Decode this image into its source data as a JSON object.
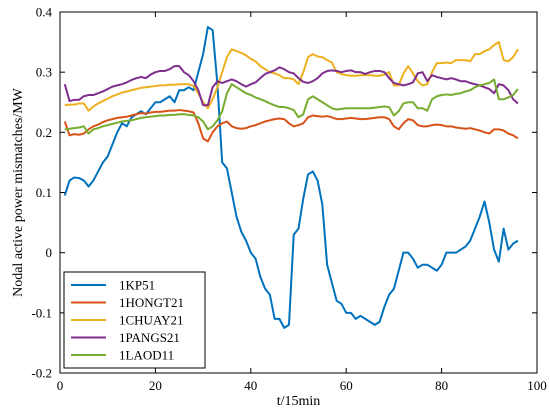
{
  "chart_data": {
    "type": "line",
    "xlabel": "t/15min",
    "ylabel": "Nodal active power mismatches/MW",
    "xlim": [
      0,
      100
    ],
    "ylim": [
      -0.2,
      0.4
    ],
    "xticks": [
      "0",
      "20",
      "40",
      "60",
      "80",
      "100"
    ],
    "yticks": [
      "-0.2",
      "-0.1",
      "0",
      "0.1",
      "0.2",
      "0.3",
      "0.4"
    ],
    "grid": false,
    "legend_position": "bottom-left",
    "series": [
      {
        "name": "1KP51",
        "color": "#0072BD",
        "x": [
          1,
          2,
          3,
          4,
          5,
          6,
          7,
          8,
          9,
          10,
          11,
          12,
          13,
          14,
          15,
          16,
          17,
          18,
          19,
          20,
          21,
          22,
          23,
          24,
          25,
          26,
          27,
          28,
          29,
          30,
          31,
          32,
          33,
          34,
          35,
          36,
          37,
          38,
          39,
          40,
          41,
          42,
          43,
          44,
          45,
          46,
          47,
          48,
          49,
          50,
          51,
          52,
          53,
          54,
          55,
          56,
          57,
          58,
          59,
          60,
          61,
          62,
          63,
          64,
          65,
          66,
          67,
          68,
          69,
          70,
          71,
          72,
          73,
          74,
          75,
          76,
          77,
          78,
          79,
          80,
          81,
          82,
          83,
          84,
          85,
          86,
          87,
          88,
          89,
          90,
          91,
          92,
          93,
          94,
          95,
          96
        ],
        "values": [
          0.095,
          0.12,
          0.125,
          0.124,
          0.12,
          0.11,
          0.12,
          0.135,
          0.15,
          0.16,
          0.18,
          0.2,
          0.215,
          0.21,
          0.225,
          0.23,
          0.235,
          0.23,
          0.24,
          0.25,
          0.25,
          0.255,
          0.26,
          0.25,
          0.27,
          0.27,
          0.275,
          0.27,
          0.3,
          0.33,
          0.375,
          0.37,
          0.28,
          0.15,
          0.14,
          0.1,
          0.06,
          0.035,
          0.02,
          0.0,
          -0.01,
          -0.04,
          -0.06,
          -0.07,
          -0.11,
          -0.11,
          -0.125,
          -0.12,
          0.03,
          0.04,
          0.09,
          0.13,
          0.135,
          0.12,
          0.08,
          -0.02,
          -0.05,
          -0.08,
          -0.085,
          -0.1,
          -0.1,
          -0.11,
          -0.105,
          -0.11,
          -0.115,
          -0.12,
          -0.115,
          -0.09,
          -0.07,
          -0.06,
          -0.03,
          0.0,
          0.0,
          -0.01,
          -0.025,
          -0.02,
          -0.02,
          -0.025,
          -0.03,
          -0.02,
          0.0,
          0.0,
          0.0,
          0.005,
          0.01,
          0.02,
          0.04,
          0.06,
          0.085,
          0.05,
          0.005,
          -0.015,
          0.04,
          0.005,
          0.015,
          0.02
        ]
      },
      {
        "name": "1HONGT21",
        "color": "#D95319",
        "x": [
          1,
          2,
          3,
          4,
          5,
          6,
          7,
          8,
          9,
          10,
          11,
          12,
          13,
          14,
          15,
          16,
          17,
          18,
          19,
          20,
          21,
          22,
          23,
          24,
          25,
          26,
          27,
          28,
          29,
          30,
          31,
          32,
          33,
          34,
          35,
          36,
          37,
          38,
          39,
          40,
          41,
          42,
          43,
          44,
          45,
          46,
          47,
          48,
          49,
          50,
          51,
          52,
          53,
          54,
          55,
          56,
          57,
          58,
          59,
          60,
          61,
          62,
          63,
          64,
          65,
          66,
          67,
          68,
          69,
          70,
          71,
          72,
          73,
          74,
          75,
          76,
          77,
          78,
          79,
          80,
          81,
          82,
          83,
          84,
          85,
          86,
          87,
          88,
          89,
          90,
          91,
          92,
          93,
          94,
          95,
          96
        ],
        "values": [
          0.218,
          0.195,
          0.197,
          0.196,
          0.198,
          0.205,
          0.21,
          0.213,
          0.217,
          0.22,
          0.222,
          0.224,
          0.225,
          0.226,
          0.228,
          0.23,
          0.232,
          0.231,
          0.233,
          0.234,
          0.234,
          0.235,
          0.236,
          0.236,
          0.237,
          0.236,
          0.235,
          0.233,
          0.215,
          0.19,
          0.185,
          0.2,
          0.21,
          0.215,
          0.218,
          0.21,
          0.207,
          0.206,
          0.207,
          0.21,
          0.212,
          0.215,
          0.218,
          0.22,
          0.222,
          0.223,
          0.222,
          0.215,
          0.21,
          0.212,
          0.215,
          0.225,
          0.228,
          0.227,
          0.226,
          0.227,
          0.225,
          0.222,
          0.222,
          0.223,
          0.224,
          0.223,
          0.222,
          0.222,
          0.223,
          0.224,
          0.225,
          0.225,
          0.222,
          0.21,
          0.205,
          0.215,
          0.222,
          0.22,
          0.212,
          0.21,
          0.21,
          0.212,
          0.213,
          0.212,
          0.21,
          0.21,
          0.208,
          0.207,
          0.206,
          0.207,
          0.205,
          0.203,
          0.2,
          0.198,
          0.205,
          0.205,
          0.203,
          0.198,
          0.195,
          0.19
        ]
      },
      {
        "name": "1CHUAY21",
        "color": "#EDB120",
        "x": [
          1,
          2,
          3,
          4,
          5,
          6,
          7,
          8,
          9,
          10,
          11,
          12,
          13,
          14,
          15,
          16,
          17,
          18,
          19,
          20,
          21,
          22,
          23,
          24,
          25,
          26,
          27,
          28,
          29,
          30,
          31,
          32,
          33,
          34,
          35,
          36,
          37,
          38,
          39,
          40,
          41,
          42,
          43,
          44,
          45,
          46,
          47,
          48,
          49,
          50,
          51,
          52,
          53,
          54,
          55,
          56,
          57,
          58,
          59,
          60,
          61,
          62,
          63,
          64,
          65,
          66,
          67,
          68,
          69,
          70,
          71,
          72,
          73,
          74,
          75,
          76,
          77,
          78,
          79,
          80,
          81,
          82,
          83,
          84,
          85,
          86,
          87,
          88,
          89,
          90,
          91,
          92,
          93,
          94,
          95,
          96
        ],
        "values": [
          0.245,
          0.246,
          0.246,
          0.248,
          0.248,
          0.236,
          0.243,
          0.248,
          0.252,
          0.256,
          0.26,
          0.263,
          0.266,
          0.268,
          0.27,
          0.272,
          0.274,
          0.275,
          0.276,
          0.277,
          0.278,
          0.278,
          0.279,
          0.279,
          0.28,
          0.28,
          0.28,
          0.277,
          0.265,
          0.25,
          0.24,
          0.255,
          0.275,
          0.3,
          0.325,
          0.338,
          0.335,
          0.332,
          0.328,
          0.322,
          0.318,
          0.31,
          0.305,
          0.3,
          0.298,
          0.295,
          0.29,
          0.29,
          0.288,
          0.28,
          0.3,
          0.325,
          0.33,
          0.326,
          0.325,
          0.32,
          0.316,
          0.3,
          0.297,
          0.295,
          0.294,
          0.294,
          0.295,
          0.295,
          0.295,
          0.294,
          0.294,
          0.296,
          0.3,
          0.278,
          0.278,
          0.298,
          0.31,
          0.298,
          0.285,
          0.278,
          0.28,
          0.3,
          0.315,
          0.315,
          0.316,
          0.315,
          0.32,
          0.32,
          0.32,
          0.318,
          0.33,
          0.33,
          0.335,
          0.338,
          0.345,
          0.35,
          0.32,
          0.318,
          0.325,
          0.338
        ]
      },
      {
        "name": "1PANGS21",
        "color": "#7E2F8E",
        "x": [
          1,
          2,
          3,
          4,
          5,
          6,
          7,
          8,
          9,
          10,
          11,
          12,
          13,
          14,
          15,
          16,
          17,
          18,
          19,
          20,
          21,
          22,
          23,
          24,
          25,
          26,
          27,
          28,
          29,
          30,
          31,
          32,
          33,
          34,
          35,
          36,
          37,
          38,
          39,
          40,
          41,
          42,
          43,
          44,
          45,
          46,
          47,
          48,
          49,
          50,
          51,
          52,
          53,
          54,
          55,
          56,
          57,
          58,
          59,
          60,
          61,
          62,
          63,
          64,
          65,
          66,
          67,
          68,
          69,
          70,
          71,
          72,
          73,
          74,
          75,
          76,
          77,
          78,
          79,
          80,
          81,
          82,
          83,
          84,
          85,
          86,
          87,
          88,
          89,
          90,
          91,
          92,
          93,
          94,
          95,
          96
        ],
        "values": [
          0.28,
          0.252,
          0.254,
          0.254,
          0.26,
          0.262,
          0.262,
          0.265,
          0.268,
          0.272,
          0.276,
          0.278,
          0.28,
          0.283,
          0.287,
          0.29,
          0.292,
          0.29,
          0.296,
          0.3,
          0.302,
          0.302,
          0.305,
          0.31,
          0.31,
          0.3,
          0.295,
          0.285,
          0.27,
          0.245,
          0.245,
          0.275,
          0.285,
          0.282,
          0.285,
          0.288,
          0.285,
          0.28,
          0.276,
          0.28,
          0.283,
          0.29,
          0.297,
          0.3,
          0.303,
          0.308,
          0.305,
          0.3,
          0.298,
          0.29,
          0.284,
          0.282,
          0.285,
          0.29,
          0.298,
          0.302,
          0.303,
          0.302,
          0.3,
          0.302,
          0.303,
          0.3,
          0.3,
          0.297,
          0.3,
          0.302,
          0.302,
          0.3,
          0.29,
          0.282,
          0.28,
          0.278,
          0.28,
          0.283,
          0.298,
          0.3,
          0.285,
          0.295,
          0.292,
          0.29,
          0.288,
          0.29,
          0.288,
          0.285,
          0.285,
          0.282,
          0.28,
          0.278,
          0.275,
          0.272,
          0.265,
          0.28,
          0.278,
          0.27,
          0.255,
          0.248
        ]
      },
      {
        "name": "1LAOD11",
        "color": "#77AC30",
        "x": [
          1,
          2,
          3,
          4,
          5,
          6,
          7,
          8,
          9,
          10,
          11,
          12,
          13,
          14,
          15,
          16,
          17,
          18,
          19,
          20,
          21,
          22,
          23,
          24,
          25,
          26,
          27,
          28,
          29,
          30,
          31,
          32,
          33,
          34,
          35,
          36,
          37,
          38,
          39,
          40,
          41,
          42,
          43,
          44,
          45,
          46,
          47,
          48,
          49,
          50,
          51,
          52,
          53,
          54,
          55,
          56,
          57,
          58,
          59,
          60,
          61,
          62,
          63,
          64,
          65,
          66,
          67,
          68,
          69,
          70,
          71,
          72,
          73,
          74,
          75,
          76,
          77,
          78,
          79,
          80,
          81,
          82,
          83,
          84,
          85,
          86,
          87,
          88,
          89,
          90,
          91,
          92,
          93,
          94,
          95,
          96
        ],
        "values": [
          0.205,
          0.206,
          0.207,
          0.208,
          0.21,
          0.198,
          0.205,
          0.207,
          0.21,
          0.212,
          0.214,
          0.216,
          0.218,
          0.219,
          0.22,
          0.222,
          0.224,
          0.225,
          0.226,
          0.227,
          0.228,
          0.228,
          0.229,
          0.229,
          0.23,
          0.23,
          0.229,
          0.228,
          0.225,
          0.218,
          0.205,
          0.21,
          0.22,
          0.235,
          0.265,
          0.28,
          0.275,
          0.27,
          0.265,
          0.262,
          0.258,
          0.255,
          0.252,
          0.248,
          0.245,
          0.242,
          0.242,
          0.24,
          0.237,
          0.225,
          0.23,
          0.255,
          0.26,
          0.255,
          0.25,
          0.245,
          0.24,
          0.238,
          0.239,
          0.24,
          0.24,
          0.24,
          0.24,
          0.24,
          0.24,
          0.241,
          0.242,
          0.243,
          0.242,
          0.228,
          0.235,
          0.248,
          0.25,
          0.25,
          0.24,
          0.24,
          0.236,
          0.255,
          0.26,
          0.262,
          0.263,
          0.262,
          0.264,
          0.265,
          0.268,
          0.27,
          0.275,
          0.278,
          0.28,
          0.282,
          0.288,
          0.255,
          0.255,
          0.258,
          0.262,
          0.272
        ]
      }
    ]
  }
}
